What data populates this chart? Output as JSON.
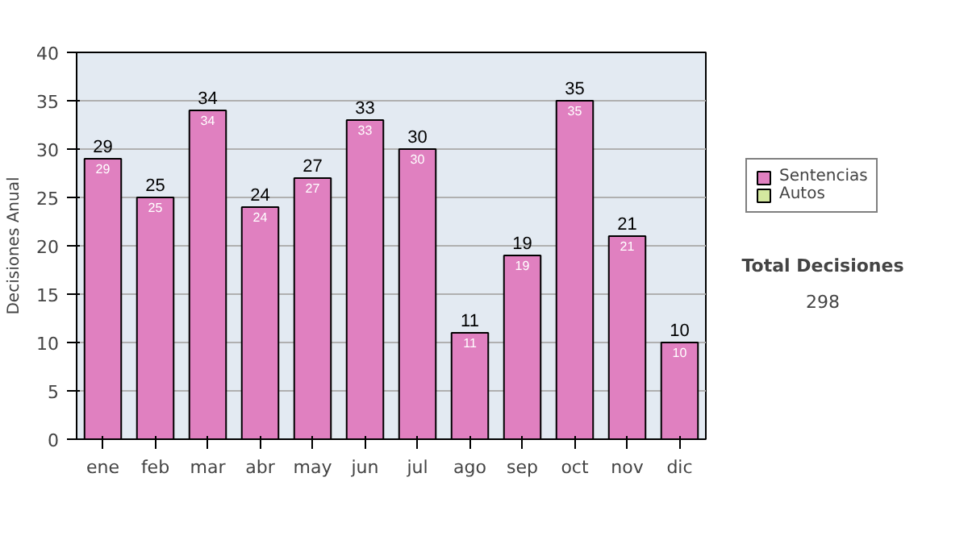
{
  "chart_data": {
    "type": "bar",
    "ylabel": "Decisiones Anual",
    "categories": [
      "ene",
      "feb",
      "mar",
      "abr",
      "may",
      "jun",
      "jul",
      "ago",
      "sep",
      "oct",
      "nov",
      "dic"
    ],
    "series": [
      {
        "name": "Sentencias",
        "color": "#e080c0",
        "values": [
          29,
          25,
          34,
          24,
          27,
          33,
          30,
          11,
          19,
          35,
          21,
          10
        ],
        "value_labels": [
          "29",
          "25",
          "34",
          "24",
          "27",
          "33",
          "30",
          "11",
          "19",
          "35",
          "21",
          "10"
        ]
      },
      {
        "name": "Autos",
        "color": "#d4e8a0",
        "values": [
          null,
          null,
          null,
          null,
          null,
          null,
          null,
          null,
          null,
          null,
          null,
          null
        ]
      }
    ],
    "ylim": [
      0,
      40
    ],
    "yticks": [
      0,
      5,
      10,
      15,
      20,
      25,
      30,
      35,
      40
    ],
    "grid": "y",
    "legend": "right",
    "annotations": [
      "Total Decisiones",
      "298",
      {
        "text": "29",
        "x": "ene",
        "y": 29
      },
      {
        "text": "25",
        "x": "feb",
        "y": 25
      },
      {
        "text": "34",
        "x": "mar",
        "y": 34
      },
      {
        "text": "24",
        "x": "abr",
        "y": 24
      },
      {
        "text": "27",
        "x": "may",
        "y": 27
      },
      {
        "text": "33",
        "x": "jun",
        "y": 33
      },
      {
        "text": "30",
        "x": "jul",
        "y": 30
      },
      {
        "text": "11",
        "x": "ago",
        "y": 11
      },
      {
        "text": "19",
        "x": "sep",
        "y": 19
      },
      {
        "text": "35",
        "x": "oct",
        "y": 35
      },
      {
        "text": "21",
        "x": "nov",
        "y": 21
      },
      {
        "text": "10",
        "x": "dic",
        "y": 10
      }
    ]
  }
}
